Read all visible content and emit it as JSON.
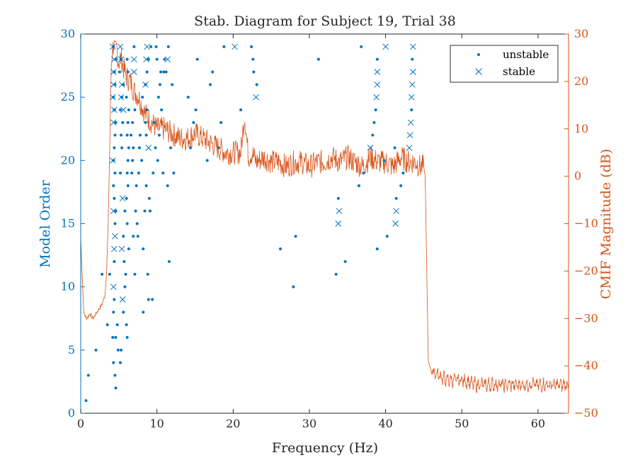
{
  "chart_data": {
    "type": "scatter",
    "title": "Stab. Diagram for Subject 19, Trial 38",
    "xlabel": "Frequency (Hz)",
    "ylabel_left": "Model Order",
    "ylabel_right": "CMIF Magnitude (dB)",
    "xlim": [
      0,
      64
    ],
    "ylim_left": [
      0,
      30
    ],
    "ylim_right": [
      -50,
      30
    ],
    "xticks": [
      "0",
      "10",
      "20",
      "30",
      "40",
      "50",
      "60"
    ],
    "yticks_left": [
      "0",
      "5",
      "10",
      "15",
      "20",
      "25",
      "30"
    ],
    "yticks_right": [
      "-50",
      "-40",
      "-30",
      "-20",
      "-10",
      "0",
      "10",
      "20",
      "30"
    ],
    "legend_position": "top-right",
    "colors": {
      "left_axis": "#0072BD",
      "right_axis": "#D95319",
      "axis": "#262626"
    },
    "series": [
      {
        "name": "unstable",
        "marker": "dot",
        "points": [
          [
            0.7,
            1
          ],
          [
            1,
            3
          ],
          [
            2,
            5
          ],
          [
            2.8,
            11
          ],
          [
            3.5,
            7
          ],
          [
            3.8,
            11
          ],
          [
            4.2,
            6
          ],
          [
            4.3,
            8
          ],
          [
            4.4,
            9
          ],
          [
            4.6,
            2
          ],
          [
            4.5,
            3
          ],
          [
            4.3,
            4
          ],
          [
            4.6,
            6
          ],
          [
            4.8,
            7
          ],
          [
            4.9,
            5
          ],
          [
            5.2,
            4
          ],
          [
            5.3,
            5
          ],
          [
            5.6,
            8
          ],
          [
            5.8,
            10
          ],
          [
            5.9,
            11
          ],
          [
            6,
            7
          ],
          [
            6.1,
            6
          ],
          [
            4.4,
            12
          ],
          [
            4.5,
            15
          ],
          [
            4.6,
            16
          ],
          [
            4.4,
            17
          ],
          [
            4.3,
            18
          ],
          [
            4.5,
            19
          ],
          [
            4.3,
            20
          ],
          [
            4.4,
            21
          ],
          [
            4.5,
            22
          ],
          [
            4.6,
            23
          ],
          [
            4.4,
            24
          ],
          [
            4.3,
            25
          ],
          [
            4.5,
            26
          ],
          [
            4.4,
            27
          ],
          [
            4.6,
            28
          ],
          [
            4.3,
            29
          ],
          [
            5.2,
            19
          ],
          [
            5.4,
            21
          ],
          [
            5.3,
            22
          ],
          [
            5.5,
            23
          ],
          [
            5.2,
            24
          ],
          [
            5.4,
            25
          ],
          [
            5.6,
            26
          ],
          [
            5.1,
            27
          ],
          [
            5.3,
            28
          ],
          [
            5.6,
            14
          ],
          [
            5.7,
            12
          ],
          [
            5.8,
            16
          ],
          [
            6.1,
            15
          ],
          [
            6,
            17
          ],
          [
            6.2,
            18
          ],
          [
            6.1,
            19
          ],
          [
            6.2,
            20
          ],
          [
            6.3,
            21
          ],
          [
            6.1,
            22
          ],
          [
            6.2,
            23
          ],
          [
            6.3,
            24
          ],
          [
            6,
            25
          ],
          [
            6.2,
            27
          ],
          [
            6.1,
            28
          ],
          [
            6.3,
            13
          ],
          [
            6.7,
            19
          ],
          [
            6.8,
            20
          ],
          [
            6.9,
            21
          ],
          [
            6.6,
            22
          ],
          [
            6.8,
            23
          ],
          [
            7.1,
            24
          ],
          [
            7.0,
            29
          ],
          [
            6.9,
            14
          ],
          [
            7.2,
            16
          ],
          [
            7.4,
            15
          ],
          [
            7.3,
            18
          ],
          [
            7.1,
            11
          ],
          [
            7.5,
            14
          ],
          [
            7.6,
            19
          ],
          [
            7.7,
            21
          ],
          [
            7.8,
            22
          ],
          [
            8,
            20
          ],
          [
            8.1,
            25
          ],
          [
            8.2,
            13
          ],
          [
            8.2,
            8
          ],
          [
            8.4,
            16
          ],
          [
            8.6,
            18
          ],
          [
            8.5,
            23
          ],
          [
            8.6,
            22
          ],
          [
            8.7,
            24
          ],
          [
            8.5,
            26
          ],
          [
            8.7,
            27
          ],
          [
            8.9,
            28
          ],
          [
            8.8,
            11
          ],
          [
            8.9,
            9
          ],
          [
            9,
            17
          ],
          [
            9.1,
            16
          ],
          [
            9.2,
            29
          ],
          [
            9.4,
            9
          ],
          [
            9.5,
            19
          ],
          [
            9.6,
            23
          ],
          [
            9.8,
            21
          ],
          [
            9.9,
            29
          ],
          [
            10,
            28
          ],
          [
            10.1,
            20
          ],
          [
            10.3,
            22
          ],
          [
            10.4,
            26
          ],
          [
            10.5,
            27
          ],
          [
            10.2,
            25
          ],
          [
            10.6,
            24
          ],
          [
            10.8,
            19
          ],
          [
            10.9,
            27
          ],
          [
            11,
            28
          ],
          [
            11.2,
            27
          ],
          [
            11.4,
            18
          ],
          [
            11.5,
            29
          ],
          [
            11.6,
            12
          ],
          [
            11.8,
            21
          ],
          [
            12,
            26
          ],
          [
            12.2,
            19
          ],
          [
            14.1,
            25
          ],
          [
            14.4,
            21
          ],
          [
            14.8,
            23
          ],
          [
            15.1,
            24
          ],
          [
            15.3,
            28
          ],
          [
            16.6,
            20
          ],
          [
            17,
            26
          ],
          [
            17.3,
            27
          ],
          [
            18.1,
            21
          ],
          [
            18.4,
            23
          ],
          [
            18.8,
            29
          ],
          [
            21,
            24
          ],
          [
            22.4,
            29
          ],
          [
            22.6,
            28
          ],
          [
            22.7,
            27
          ],
          [
            23.1,
            26
          ],
          [
            26.2,
            13
          ],
          [
            27.9,
            10
          ],
          [
            28.2,
            14
          ],
          [
            31.2,
            28
          ],
          [
            33.5,
            11
          ],
          [
            33.8,
            17
          ],
          [
            34.7,
            12
          ],
          [
            36.5,
            18
          ],
          [
            36.8,
            29
          ],
          [
            37.1,
            19
          ],
          [
            38.3,
            22
          ],
          [
            38.5,
            23
          ],
          [
            38.7,
            24
          ],
          [
            38.9,
            13
          ],
          [
            38.9,
            28
          ],
          [
            39.8,
            20
          ],
          [
            40.2,
            14
          ],
          [
            41.2,
            21
          ],
          [
            41.4,
            17
          ],
          [
            42,
            18
          ],
          [
            42.3,
            19
          ],
          [
            43.4,
            24
          ],
          [
            43.5,
            28
          ]
        ]
      },
      {
        "name": "stable",
        "marker": "x",
        "points": [
          [
            4.3,
            10
          ],
          [
            4.4,
            13
          ],
          [
            4.5,
            14
          ],
          [
            4.3,
            16
          ],
          [
            4.2,
            20
          ],
          [
            4.3,
            23
          ],
          [
            4.4,
            24
          ],
          [
            4.2,
            25
          ],
          [
            4.3,
            26
          ],
          [
            4.3,
            27
          ],
          [
            4.4,
            28
          ],
          [
            4.2,
            29
          ],
          [
            5.5,
            9
          ],
          [
            5.4,
            13
          ],
          [
            5.5,
            17
          ],
          [
            5.6,
            24
          ],
          [
            5.3,
            25
          ],
          [
            5.4,
            26
          ],
          [
            5.3,
            28
          ],
          [
            5.2,
            29
          ],
          [
            7,
            27
          ],
          [
            7,
            28
          ],
          [
            8.5,
            26
          ],
          [
            8.6,
            28
          ],
          [
            8.7,
            29
          ],
          [
            8.9,
            21
          ],
          [
            11.4,
            28
          ],
          [
            20.2,
            29
          ],
          [
            23,
            25
          ],
          [
            33.8,
            15
          ],
          [
            33.9,
            16
          ],
          [
            38,
            21
          ],
          [
            38.8,
            25
          ],
          [
            38.9,
            26
          ],
          [
            38.9,
            27
          ],
          [
            40,
            29
          ],
          [
            41.3,
            15
          ],
          [
            41.4,
            16
          ],
          [
            43.1,
            21
          ],
          [
            43.2,
            22
          ],
          [
            43.3,
            23
          ],
          [
            43.4,
            25
          ],
          [
            43.5,
            26
          ],
          [
            43.6,
            27
          ],
          [
            43.6,
            29
          ]
        ]
      },
      {
        "name": "",
        "type": "line",
        "axis": "right",
        "x": [
          0,
          0.4,
          0.8,
          1.2,
          1.6,
          2,
          2.4,
          2.8,
          3.2,
          3.4,
          3.6,
          3.8,
          3.9,
          4.0,
          4.1,
          4.2,
          4.3,
          4.5,
          4.7,
          5,
          5.3,
          5.6,
          6,
          6.5,
          7,
          7.5,
          8,
          8.5,
          9,
          9.5,
          10,
          11,
          12,
          13,
          14,
          15,
          16,
          17,
          18,
          19,
          20,
          21,
          21.5,
          22,
          22.5,
          23,
          24,
          25,
          26,
          27,
          28,
          29,
          30,
          31,
          32,
          33,
          34,
          35,
          36,
          37,
          38,
          39,
          40,
          41,
          42,
          43,
          44,
          44.5,
          45,
          45.2,
          45.4,
          45.6,
          46,
          47,
          48,
          50,
          52,
          55,
          58,
          61,
          64
        ],
        "y": [
          -13,
          -29,
          -30,
          -29,
          -30,
          -29,
          -28,
          -27,
          -25,
          -20,
          -10,
          5,
          15,
          23,
          26,
          27,
          28,
          26,
          27,
          24,
          25,
          23,
          21,
          20,
          18,
          17,
          15,
          13,
          12,
          11,
          10,
          10,
          9,
          8,
          8,
          9,
          8,
          7,
          6,
          5,
          5,
          5,
          13,
          4,
          5,
          3,
          4,
          3,
          3,
          2,
          3,
          3,
          2,
          3,
          3,
          4,
          3,
          4,
          3,
          2,
          4,
          3,
          3,
          2,
          4,
          3,
          3,
          2,
          2,
          0,
          -20,
          -39,
          -41,
          -42,
          -43,
          -43,
          -44,
          -44,
          -44,
          -44,
          -44
        ]
      }
    ]
  }
}
